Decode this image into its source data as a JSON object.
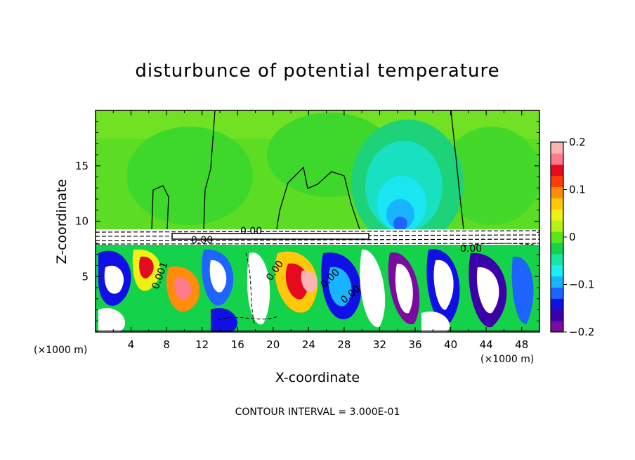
{
  "chart_data": {
    "type": "heatmap",
    "title": "disturbunce of potential temperature",
    "xlabel": "X-coordinate",
    "ylabel": "Z-coordinate",
    "x_unit": "(×1000 m)",
    "x_unit_right": "(×1000 m)",
    "xlim": [
      0,
      50
    ],
    "ylim": [
      0,
      20
    ],
    "xticks": [
      "4",
      "8",
      "12",
      "16",
      "20",
      "24",
      "28",
      "32",
      "36",
      "40",
      "44",
      "48"
    ],
    "yticks": [
      "5",
      "10",
      "15"
    ],
    "colorbar": {
      "range": [
        -0.2,
        0.2
      ],
      "ticks": [
        "0.2",
        "0.1",
        "0",
        "−0.1",
        "−0.2"
      ],
      "colors": [
        "#7a0aa0",
        "#3c00a8",
        "#1010e6",
        "#1e64ff",
        "#19b4ff",
        "#19f0f0",
        "#19e6a0",
        "#14d24a",
        "#5ae619",
        "#b4f019",
        "#f0f014",
        "#ffc80a",
        "#ff8c0a",
        "#ff3c0a",
        "#e60a1e",
        "#ff7b8c",
        "#ffb4b4"
      ]
    },
    "contour_labels": [
      "0.00",
      "0.00",
      "0.001",
      "0.00",
      "0.00",
      "0.00",
      "0.00"
    ],
    "annotation": "CONTOUR INTERVAL = 3.000E-01"
  }
}
